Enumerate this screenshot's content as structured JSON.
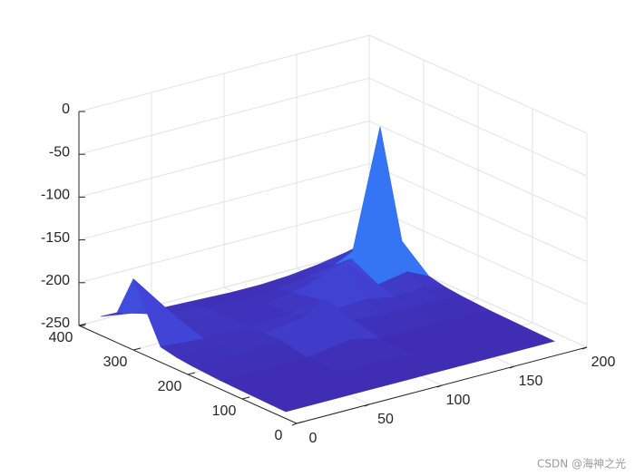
{
  "chart_data": {
    "type": "surface",
    "x": [
      0,
      30,
      60,
      90,
      110,
      130,
      150,
      170,
      185
    ],
    "y": [
      20,
      80,
      140,
      190,
      220,
      250,
      300,
      330,
      360
    ],
    "z": [
      [
        -242,
        -242,
        -242,
        -242,
        -242,
        -242,
        -242,
        -242,
        -242
      ],
      [
        -241,
        -241,
        -241,
        -241,
        -241,
        -241,
        -241,
        -241,
        -241
      ],
      [
        -240,
        -240,
        -240,
        -232,
        -240,
        -240,
        -240,
        -240,
        -240
      ],
      [
        -238,
        -238,
        -234,
        -199,
        -232,
        -235,
        -236,
        -236,
        -238
      ],
      [
        -236,
        -236,
        -234,
        -228,
        -228,
        -226,
        -232,
        -230,
        -236
      ],
      [
        -232,
        -236,
        -236,
        -232,
        -226,
        -195,
        -226,
        -220,
        -232
      ],
      [
        -167,
        -226,
        -234,
        -236,
        -232,
        -222,
        -210,
        -65,
        -205
      ],
      [
        -215,
        -230,
        -236,
        -238,
        -236,
        -232,
        -226,
        -210,
        -225
      ],
      [
        -228,
        -236,
        -238,
        -240,
        -240,
        -238,
        -234,
        -228,
        -234
      ]
    ],
    "xlim": [
      0,
      200
    ],
    "ylim": [
      0,
      400
    ],
    "zlim": [
      -250,
      0
    ],
    "xticks": [
      0,
      50,
      100,
      150,
      200
    ],
    "yticks": [
      0,
      100,
      200,
      300,
      400
    ],
    "zticks": [
      -250,
      -200,
      -150,
      -100,
      -50,
      0
    ],
    "grid": true,
    "colormap": [
      "#3e26a8",
      "#4145d8",
      "#3477f5",
      "#1fa7db",
      "#27c0a6",
      "#8fc95a",
      "#e9c13a",
      "#f9fb15"
    ]
  },
  "watermark": "CSDN @海神之光"
}
